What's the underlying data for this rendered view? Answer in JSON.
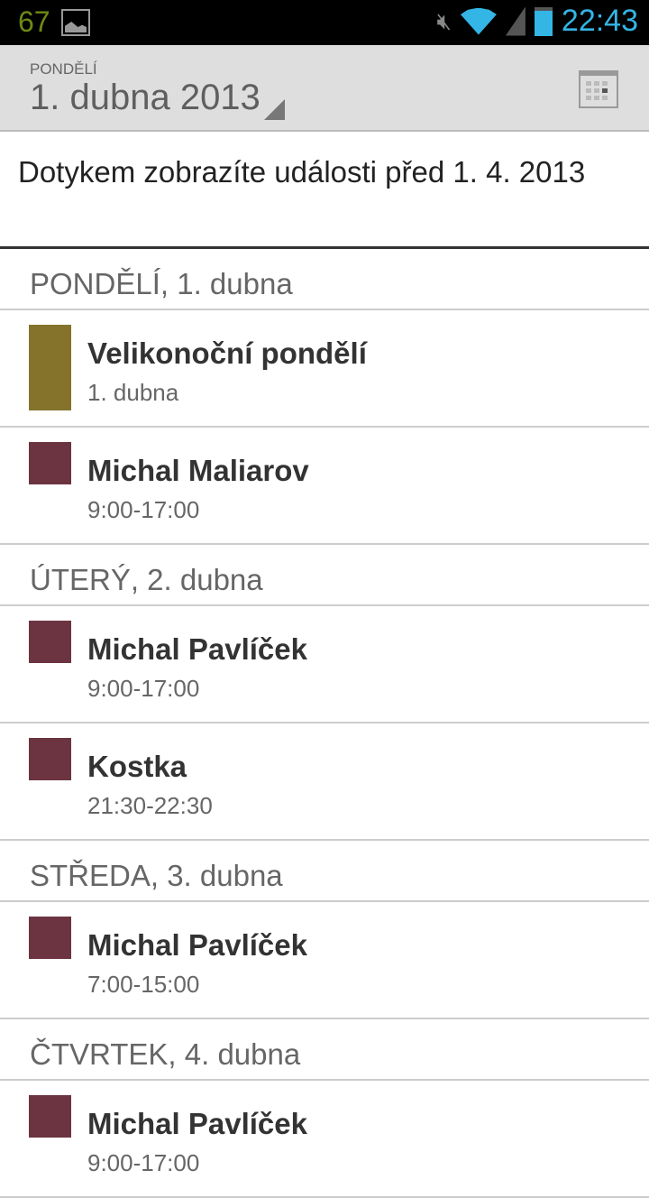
{
  "status_bar": {
    "notification_count": "67",
    "time": "22:43"
  },
  "action_bar": {
    "weekday": "PONDĚLÍ",
    "date": "1. dubna 2013",
    "calendar_icon": "calendar-icon"
  },
  "load_earlier": "Dotykem zobrazíte události před 1. 4. 2013",
  "colors": {
    "holiday": "#85722b",
    "personal": "#6b3440",
    "clock": "#33b5e5"
  },
  "days": [
    {
      "header": "PONDĚLÍ, 1. dubna",
      "events": [
        {
          "title": "Velikonoční pondělí",
          "time": "1. dubna",
          "color": "#85722b",
          "allday": true
        },
        {
          "title": "Michal Maliarov",
          "time": "9:00-17:00",
          "color": "#6b3440"
        }
      ]
    },
    {
      "header": "ÚTERÝ, 2. dubna",
      "events": [
        {
          "title": "Michal Pavlíček",
          "time": "9:00-17:00",
          "color": "#6b3440"
        },
        {
          "title": "Kostka",
          "time": "21:30-22:30",
          "color": "#6b3440"
        }
      ]
    },
    {
      "header": "STŘEDA, 3. dubna",
      "events": [
        {
          "title": "Michal Pavlíček",
          "time": "7:00-15:00",
          "color": "#6b3440"
        }
      ]
    },
    {
      "header": "ČTVRTEK, 4. dubna",
      "events": [
        {
          "title": "Michal Pavlíček",
          "time": "9:00-17:00",
          "color": "#6b3440"
        }
      ]
    }
  ]
}
